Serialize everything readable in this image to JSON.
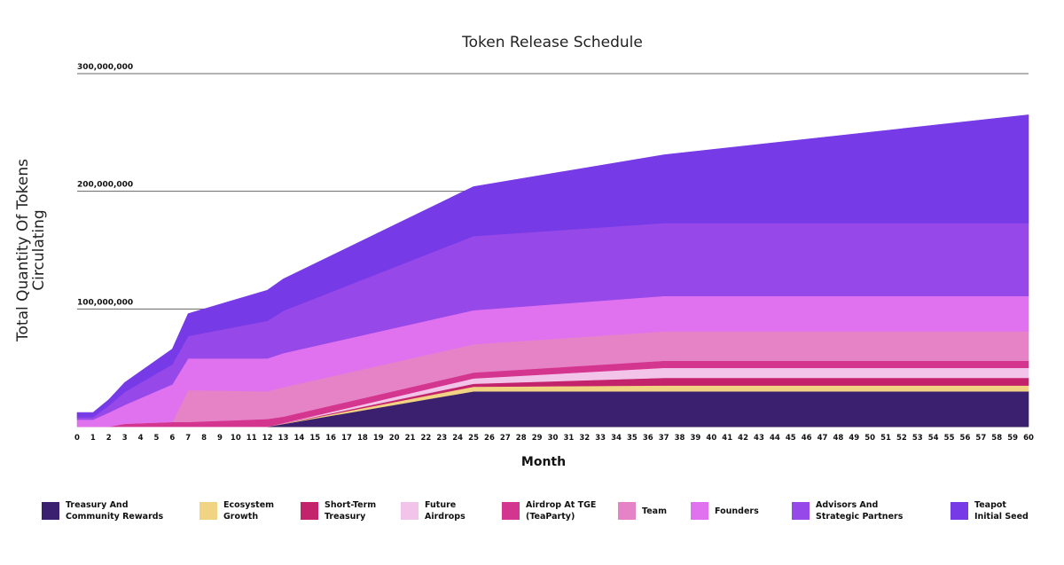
{
  "chart_data": {
    "type": "area",
    "stacked": true,
    "title": "Token Release Schedule",
    "xlabel": "Month",
    "ylabel": [
      "Total Quantity Of Tokens",
      "Circulating"
    ],
    "ylim": [
      0,
      300000000
    ],
    "yticks": [
      100000000,
      200000000,
      300000000
    ],
    "ytick_labels": [
      "100,000,000",
      "200,000,000",
      "300,000,000"
    ],
    "xlim": [
      0,
      60
    ],
    "xticks": [
      0,
      1,
      2,
      3,
      4,
      5,
      6,
      7,
      8,
      9,
      10,
      11,
      12,
      13,
      14,
      15,
      16,
      17,
      18,
      19,
      20,
      21,
      22,
      23,
      24,
      25,
      26,
      27,
      28,
      29,
      30,
      31,
      32,
      33,
      34,
      35,
      36,
      37,
      38,
      39,
      40,
      41,
      42,
      43,
      44,
      45,
      46,
      47,
      48,
      49,
      50,
      51,
      52,
      53,
      54,
      55,
      56,
      57,
      58,
      59,
      60
    ],
    "grid": "horizontal",
    "legend_position": "bottom",
    "x": [
      0,
      1,
      2,
      3,
      6,
      7,
      12,
      13,
      25,
      37,
      60
    ],
    "series": [
      {
        "name": "Treasury And Community Rewards",
        "color": "#3a206e",
        "values": [
          0,
          0,
          0,
          0,
          0,
          0,
          0,
          2300000,
          30000000,
          30000000,
          30000000
        ]
      },
      {
        "name": "Ecosystem Growth",
        "color": "#f1d483",
        "values": [
          0,
          0,
          0,
          0,
          0,
          0,
          0,
          300000,
          4000000,
          5000000,
          5000000
        ]
      },
      {
        "name": "Short-Term Treasury",
        "color": "#c3236b",
        "values": [
          0,
          0,
          0,
          0,
          0,
          0,
          0,
          200000,
          2500000,
          6500000,
          6500000
        ]
      },
      {
        "name": "Future Airdrops",
        "color": "#f3c4ea",
        "values": [
          0,
          0,
          0,
          0,
          0,
          0,
          0,
          200000,
          4500000,
          8500000,
          8500000
        ]
      },
      {
        "name": "Airdrop At TGE (TeaParty)",
        "color": "#d4358f",
        "values": [
          0,
          0,
          0,
          2500000,
          4000000,
          4000000,
          6500000,
          5500000,
          5000000,
          6000000,
          6000000
        ]
      },
      {
        "name": "Team",
        "color": "#e683c7",
        "values": [
          0,
          0,
          0,
          0,
          0,
          27000000,
          23500000,
          25000000,
          24000000,
          25000000,
          25000000
        ]
      },
      {
        "name": "Founders",
        "color": "#e072ef",
        "values": [
          6000000,
          6000000,
          12000000,
          16000000,
          32000000,
          27000000,
          28000000,
          29000000,
          29000000,
          30000000,
          30000000
        ]
      },
      {
        "name": "Advisors And Strategic Partners",
        "color": "#9748e9",
        "values": [
          2000000,
          2000000,
          6000000,
          11000000,
          17000000,
          19000000,
          32000000,
          36000000,
          63000000,
          62000000,
          62000000
        ]
      },
      {
        "name": "Teapot Initial Seed",
        "color": "#763ae7",
        "values": [
          4000000,
          4000000,
          5000000,
          8000000,
          13000000,
          19000000,
          26000000,
          27000000,
          42000000,
          58000000,
          92000000
        ]
      }
    ]
  }
}
